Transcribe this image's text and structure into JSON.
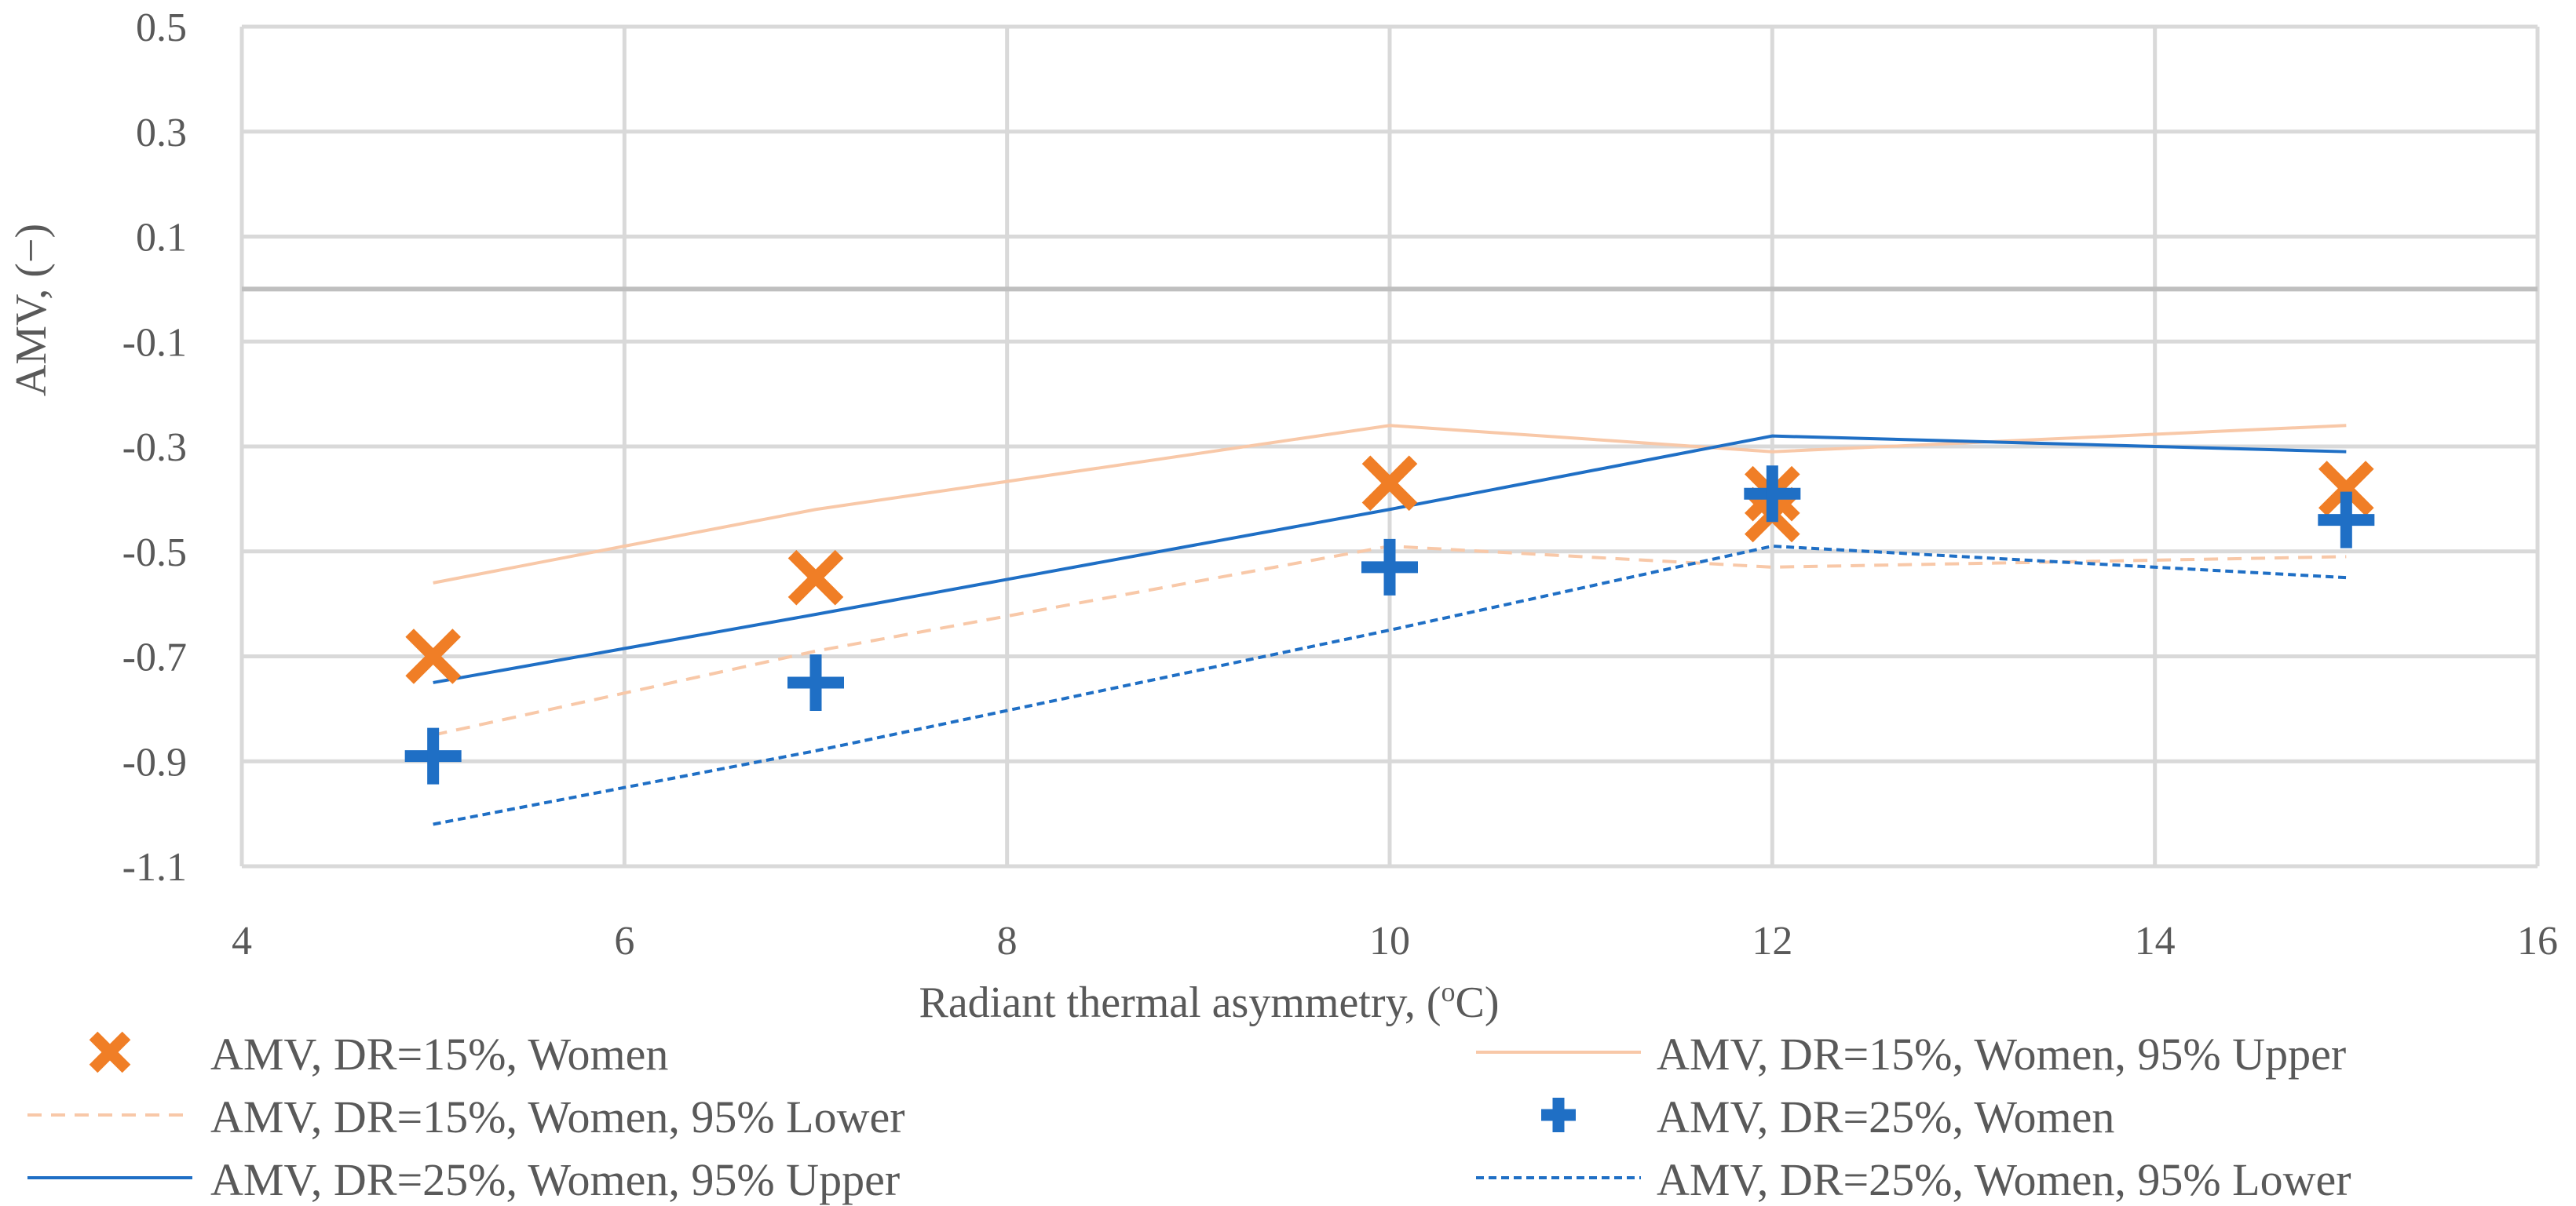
{
  "chart_data": {
    "type": "scatter",
    "xlabel": "Radiant thermal asymmetry, (",
    "xlabel_sup": "o",
    "xlabel_tail": "C)",
    "ylabel": "AMV, (−)",
    "xlim": [
      4,
      16
    ],
    "ylim": [
      -1.1,
      0.5
    ],
    "xticks": [
      "4",
      "6",
      "8",
      "10",
      "12",
      "14",
      "16"
    ],
    "xtick_values": [
      4,
      6,
      8,
      10,
      12,
      14,
      16
    ],
    "yticks": [
      "0.5",
      "0.3",
      "0.1",
      "-0.1",
      "-0.3",
      "-0.5",
      "-0.7",
      "-0.9",
      "-1.1"
    ],
    "ytick_values": [
      0.5,
      0.3,
      0.1,
      -0.1,
      -0.3,
      -0.5,
      -0.7,
      -0.9,
      -1.1
    ],
    "zero_line": 0.0,
    "grid": true,
    "legend_position": "bottom",
    "colors": {
      "orange": "#f07e26",
      "orange_light": "#f8c8a8",
      "blue": "#1f6fc5",
      "grid": "#d9d9d9",
      "zero": "#bfbfbf",
      "text": "#595959"
    },
    "series": [
      {
        "name": "AMV, DR=15%, Women",
        "kind": "marker-x",
        "color": "#f07e26",
        "x": [
          5,
          7,
          10,
          12,
          12,
          15
        ],
        "y": [
          -0.7,
          -0.55,
          -0.37,
          -0.43,
          -0.39,
          -0.38
        ]
      },
      {
        "name": "AMV, DR=15%, Women, 95% Upper",
        "kind": "line",
        "color": "#f8c8a8",
        "dash": "",
        "x": [
          5,
          7,
          10,
          12,
          15
        ],
        "y": [
          -0.56,
          -0.42,
          -0.26,
          -0.31,
          -0.26
        ]
      },
      {
        "name": "AMV, DR=15%, Women, 95% Lower",
        "kind": "line",
        "color": "#f8c8a8",
        "dash": "18,12",
        "x": [
          5,
          7,
          10,
          12,
          15
        ],
        "y": [
          -0.85,
          -0.69,
          -0.49,
          -0.53,
          -0.51
        ]
      },
      {
        "name": "AMV, DR=25%, Women",
        "kind": "marker-plus",
        "color": "#1f6fc5",
        "x": [
          5,
          7,
          10,
          12,
          15
        ],
        "y": [
          -0.89,
          -0.75,
          -0.53,
          -0.39,
          -0.44
        ]
      },
      {
        "name": "AMV, DR=25%, Women, 95% Upper",
        "kind": "line",
        "color": "#1f6fc5",
        "dash": "",
        "x": [
          5,
          7,
          10,
          12,
          15
        ],
        "y": [
          -0.75,
          -0.62,
          -0.42,
          -0.28,
          -0.31
        ]
      },
      {
        "name": "AMV, DR=25%, Women, 95% Lower",
        "kind": "line",
        "color": "#1f6fc5",
        "dash": "10,6",
        "x": [
          5,
          7,
          10,
          12,
          15
        ],
        "y": [
          -1.02,
          -0.88,
          -0.65,
          -0.49,
          -0.55
        ]
      }
    ],
    "legend_order": [
      0,
      1,
      2,
      3,
      4,
      5
    ]
  }
}
